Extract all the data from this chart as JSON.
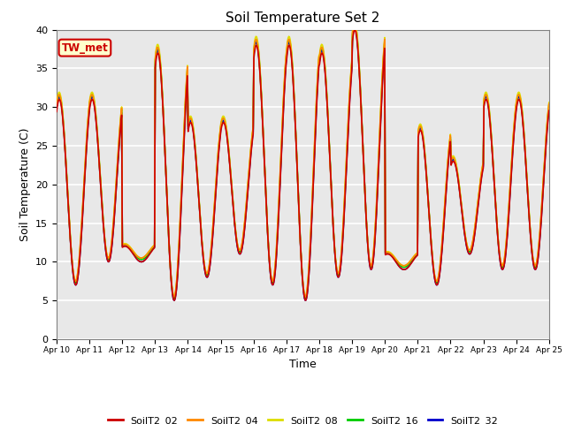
{
  "title": "Soil Temperature Set 2",
  "xlabel": "Time",
  "ylabel": "Soil Temperature (C)",
  "ylim": [
    0,
    40
  ],
  "background_color": "#e8e8e8",
  "grid_color": "white",
  "series": [
    "SoilT2_02",
    "SoilT2_04",
    "SoilT2_08",
    "SoilT2_16",
    "SoilT2_32"
  ],
  "colors": [
    "#cc0000",
    "#ff8800",
    "#dddd00",
    "#00cc00",
    "#0000cc"
  ],
  "annotation_text": "TW_met",
  "annotation_facecolor": "#ffffcc",
  "annotation_edgecolor": "#cc0000",
  "annotation_textcolor": "#cc0000",
  "x_tick_labels": [
    "Apr 10",
    "Apr 11",
    "Apr 12",
    "Apr 13",
    "Apr 14",
    "Apr 15",
    "Apr 16",
    "Apr 17",
    "Apr 18",
    "Apr 19",
    "Apr 20",
    "Apr 21",
    "Apr 22",
    "Apr 23",
    "Apr 24",
    "Apr 25"
  ],
  "y_ticks": [
    0,
    5,
    10,
    15,
    20,
    25,
    30,
    35,
    40
  ],
  "day_peaks": [
    31,
    31,
    12,
    31,
    37,
    11,
    28,
    28,
    38,
    38,
    40,
    9,
    27,
    27,
    23,
    23,
    31,
    31
  ],
  "day_troughs": [
    7,
    3,
    10,
    5,
    10,
    8,
    11,
    7,
    10,
    5,
    8,
    9,
    12,
    7,
    11,
    9,
    9,
    15
  ]
}
